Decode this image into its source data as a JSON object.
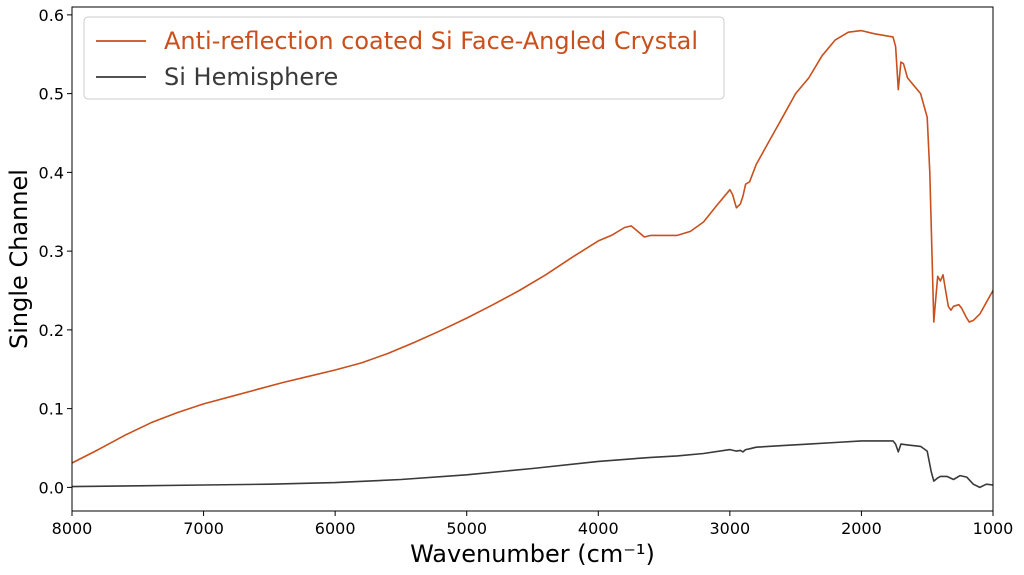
{
  "chart_data": {
    "type": "line",
    "title": "",
    "xlabel": "Wavenumber (cm⁻¹)",
    "ylabel": "Single Channel",
    "xlim": [
      8000,
      1000
    ],
    "ylim": [
      -0.03,
      0.61
    ],
    "x_inverted": true,
    "xticks": [
      8000,
      7000,
      6000,
      5000,
      4000,
      3000,
      2000,
      1000
    ],
    "xtick_labels": [
      "8000",
      "7000",
      "6000",
      "5000",
      "4000",
      "3000",
      "2000",
      "1000"
    ],
    "yticks": [
      0.0,
      0.1,
      0.2,
      0.3,
      0.4,
      0.5,
      0.6
    ],
    "ytick_labels": [
      "0.0",
      "0.1",
      "0.2",
      "0.3",
      "0.4",
      "0.5",
      "0.6"
    ],
    "grid": false,
    "legend_position": "top-left",
    "series": [
      {
        "name": "Anti-reflection coated Si Face-Angled Crystal",
        "color": "#c9501c",
        "x": [
          8000,
          7800,
          7600,
          7400,
          7200,
          7000,
          6800,
          6600,
          6400,
          6200,
          6000,
          5800,
          5600,
          5400,
          5200,
          5000,
          4800,
          4600,
          4400,
          4200,
          4000,
          3900,
          3800,
          3750,
          3700,
          3650,
          3600,
          3500,
          3400,
          3300,
          3200,
          3100,
          3000,
          2980,
          2950,
          2920,
          2900,
          2880,
          2850,
          2800,
          2700,
          2600,
          2500,
          2400,
          2300,
          2200,
          2100,
          2000,
          1900,
          1800,
          1760,
          1740,
          1720,
          1700,
          1680,
          1650,
          1600,
          1550,
          1500,
          1480,
          1450,
          1440,
          1420,
          1400,
          1380,
          1360,
          1340,
          1320,
          1300,
          1260,
          1240,
          1200,
          1180,
          1150,
          1100,
          1050,
          1000
        ],
        "y": [
          0.031,
          0.048,
          0.066,
          0.082,
          0.095,
          0.106,
          0.115,
          0.124,
          0.133,
          0.141,
          0.149,
          0.158,
          0.17,
          0.184,
          0.199,
          0.215,
          0.232,
          0.25,
          0.27,
          0.292,
          0.313,
          0.32,
          0.33,
          0.332,
          0.325,
          0.318,
          0.32,
          0.32,
          0.32,
          0.325,
          0.337,
          0.358,
          0.378,
          0.372,
          0.355,
          0.36,
          0.37,
          0.385,
          0.388,
          0.41,
          0.44,
          0.47,
          0.5,
          0.52,
          0.548,
          0.568,
          0.578,
          0.58,
          0.576,
          0.573,
          0.572,
          0.56,
          0.505,
          0.54,
          0.538,
          0.52,
          0.51,
          0.5,
          0.47,
          0.4,
          0.21,
          0.23,
          0.268,
          0.262,
          0.27,
          0.25,
          0.23,
          0.225,
          0.23,
          0.232,
          0.228,
          0.215,
          0.21,
          0.212,
          0.22,
          0.235,
          0.25
        ]
      },
      {
        "name": "Si Hemisphere",
        "color": "#3a3a3a",
        "x": [
          8000,
          7500,
          7000,
          6500,
          6000,
          5500,
          5000,
          4500,
          4000,
          3600,
          3400,
          3200,
          3000,
          2950,
          2920,
          2900,
          2880,
          2850,
          2800,
          2600,
          2400,
          2200,
          2000,
          1900,
          1800,
          1760,
          1740,
          1720,
          1700,
          1650,
          1550,
          1500,
          1470,
          1450,
          1420,
          1400,
          1350,
          1300,
          1250,
          1200,
          1150,
          1100,
          1050,
          1000
        ],
        "y": [
          0.001,
          0.002,
          0.003,
          0.004,
          0.006,
          0.01,
          0.016,
          0.024,
          0.033,
          0.038,
          0.04,
          0.043,
          0.048,
          0.046,
          0.047,
          0.045,
          0.048,
          0.049,
          0.051,
          0.053,
          0.055,
          0.057,
          0.059,
          0.059,
          0.059,
          0.059,
          0.055,
          0.045,
          0.055,
          0.054,
          0.052,
          0.046,
          0.02,
          0.008,
          0.012,
          0.014,
          0.014,
          0.01,
          0.015,
          0.013,
          0.004,
          0.0,
          0.004,
          0.003
        ]
      }
    ]
  }
}
